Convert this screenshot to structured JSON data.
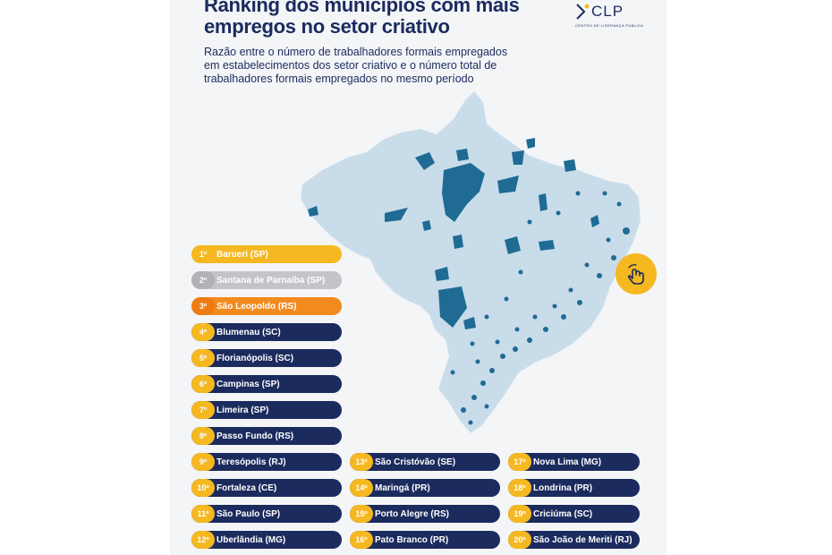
{
  "header": {
    "title_line1": "Ranking dos municípios com mais",
    "title_line2": "empregos no setor criativo",
    "subtitle_line1": "Razão entre o número de trabalhadores formais empregados",
    "subtitle_line2": "em estabelecimentos dos setor criativo e o número total de",
    "subtitle_line3": "trabalhadores formais empregados no mesmo período"
  },
  "logo": {
    "text": "CLP",
    "subtext": "CENTRO DE LIDERANÇA PÚBLICA"
  },
  "map": {
    "land_color": "#c9dcea",
    "highlight_color": "#1f6b94"
  },
  "interaction_icon": "hand-swipe-icon",
  "ranking": [
    {
      "rank": "1º",
      "city": "Barueri (SP)"
    },
    {
      "rank": "2º",
      "city": "Santana de Parnaíba (SP)"
    },
    {
      "rank": "3º",
      "city": "São Leopoldo (RS)"
    },
    {
      "rank": "4º",
      "city": "Blumenau (SC)"
    },
    {
      "rank": "5º",
      "city": "Florianópolis (SC)"
    },
    {
      "rank": "6º",
      "city": "Campinas (SP)"
    },
    {
      "rank": "7º",
      "city": "Limeira (SP)"
    },
    {
      "rank": "8º",
      "city": "Passo Fundo (RS)"
    },
    {
      "rank": "9º",
      "city": "Teresópolis (RJ)"
    },
    {
      "rank": "10º",
      "city": "Fortaleza (CE)"
    },
    {
      "rank": "11º",
      "city": "São Paulo (SP)"
    },
    {
      "rank": "12º",
      "city": "Uberlândia (MG)"
    },
    {
      "rank": "13º",
      "city": "São Cristóvão (SE)"
    },
    {
      "rank": "14º",
      "city": "Maringá (PR)"
    },
    {
      "rank": "15º",
      "city": "Porto Alegre (RS)"
    },
    {
      "rank": "16º",
      "city": "Pato Branco (PR)"
    },
    {
      "rank": "17º",
      "city": "Nova Lima (MG)"
    },
    {
      "rank": "18º",
      "city": "Londrina (PR)"
    },
    {
      "rank": "19º",
      "city": "Criciúma (SC)"
    },
    {
      "rank": "20º",
      "city": "São João de Meriti (RJ)"
    }
  ],
  "colors": {
    "navy": "#1b2b5e",
    "gold": "#f5b820",
    "silver": "#c2c4c8",
    "bronze": "#f28a1e"
  }
}
